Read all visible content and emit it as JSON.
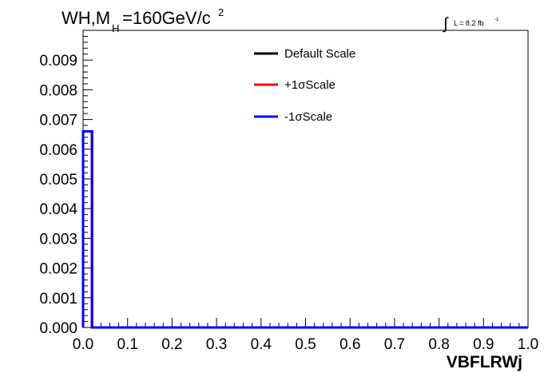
{
  "title": {
    "prefix": "WH,M",
    "subscript": "H",
    "value": "=160GeV/c",
    "superscript": "2"
  },
  "luminosity": {
    "integral": "∫",
    "text": "L = 8.2 fb",
    "superscript": "-1"
  },
  "legend": {
    "entries": [
      {
        "label": "Default Scale",
        "color": "#000000"
      },
      {
        "label": "+1σScale",
        "color": "#ff0000"
      },
      {
        "label": "-1σScale",
        "color": "#0000ff"
      }
    ]
  },
  "chart_data": {
    "type": "histogram",
    "title": "WH,MH=160GeV/c2",
    "xlabel": "VBFLRWj",
    "ylabel": "",
    "xlim": [
      0.0,
      1.0
    ],
    "ylim": [
      0.0,
      0.01
    ],
    "xticks": [
      "0.0",
      "0.1",
      "0.2",
      "0.3",
      "0.4",
      "0.5",
      "0.6",
      "0.7",
      "0.8",
      "0.9",
      "1.0"
    ],
    "yticks": [
      "0.000",
      "0.001",
      "0.002",
      "0.003",
      "0.004",
      "0.005",
      "0.006",
      "0.007",
      "0.008",
      "0.009"
    ],
    "bin_edges": [
      0.0,
      0.02,
      1.0
    ],
    "series": [
      {
        "name": "Default Scale",
        "color": "#000000",
        "values": [
          0.0066,
          0.0
        ]
      },
      {
        "name": "+1σScale",
        "color": "#ff0000",
        "values": [
          0.0066,
          0.0
        ]
      },
      {
        "name": "-1σScale",
        "color": "#0000ff",
        "values": [
          0.0066,
          0.0
        ]
      }
    ],
    "legend_position": "top-center",
    "grid": false
  }
}
